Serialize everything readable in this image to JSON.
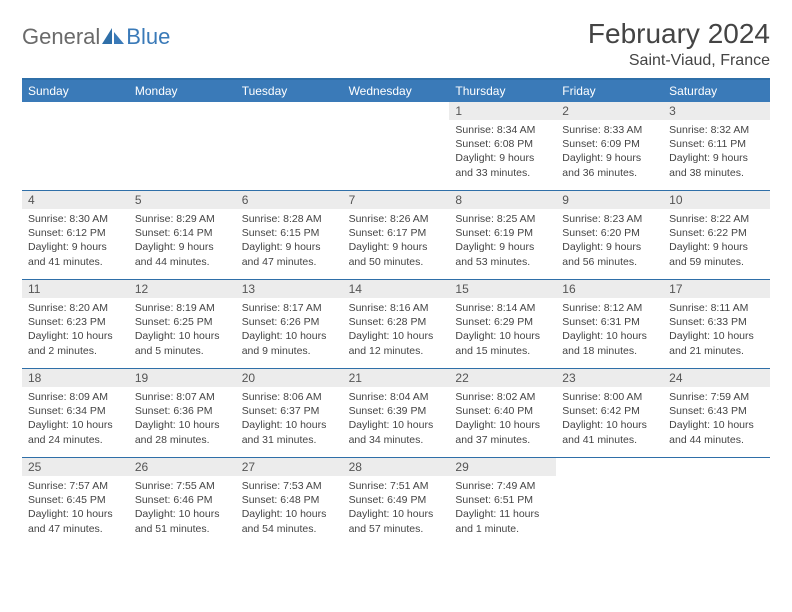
{
  "brand": {
    "part1": "General",
    "part2": "Blue"
  },
  "title": "February 2024",
  "location": "Saint-Viaud, France",
  "colors": {
    "header_bg": "#3a7ab8",
    "header_border": "#2f6fa8",
    "daynum_bg": "#ececec",
    "text": "#444444",
    "logo_gray": "#6a6a6a",
    "logo_blue": "#3a7ab8",
    "background": "#ffffff"
  },
  "typography": {
    "title_fontsize": 28,
    "location_fontsize": 16,
    "dayheader_fontsize": 12,
    "daynum_fontsize": 12,
    "body_fontsize": 10.5
  },
  "day_names": [
    "Sunday",
    "Monday",
    "Tuesday",
    "Wednesday",
    "Thursday",
    "Friday",
    "Saturday"
  ],
  "weeks": [
    [
      {
        "empty": true
      },
      {
        "empty": true
      },
      {
        "empty": true
      },
      {
        "empty": true
      },
      {
        "n": "1",
        "sunrise": "Sunrise: 8:34 AM",
        "sunset": "Sunset: 6:08 PM",
        "day1": "Daylight: 9 hours",
        "day2": "and 33 minutes."
      },
      {
        "n": "2",
        "sunrise": "Sunrise: 8:33 AM",
        "sunset": "Sunset: 6:09 PM",
        "day1": "Daylight: 9 hours",
        "day2": "and 36 minutes."
      },
      {
        "n": "3",
        "sunrise": "Sunrise: 8:32 AM",
        "sunset": "Sunset: 6:11 PM",
        "day1": "Daylight: 9 hours",
        "day2": "and 38 minutes."
      }
    ],
    [
      {
        "n": "4",
        "sunrise": "Sunrise: 8:30 AM",
        "sunset": "Sunset: 6:12 PM",
        "day1": "Daylight: 9 hours",
        "day2": "and 41 minutes."
      },
      {
        "n": "5",
        "sunrise": "Sunrise: 8:29 AM",
        "sunset": "Sunset: 6:14 PM",
        "day1": "Daylight: 9 hours",
        "day2": "and 44 minutes."
      },
      {
        "n": "6",
        "sunrise": "Sunrise: 8:28 AM",
        "sunset": "Sunset: 6:15 PM",
        "day1": "Daylight: 9 hours",
        "day2": "and 47 minutes."
      },
      {
        "n": "7",
        "sunrise": "Sunrise: 8:26 AM",
        "sunset": "Sunset: 6:17 PM",
        "day1": "Daylight: 9 hours",
        "day2": "and 50 minutes."
      },
      {
        "n": "8",
        "sunrise": "Sunrise: 8:25 AM",
        "sunset": "Sunset: 6:19 PM",
        "day1": "Daylight: 9 hours",
        "day2": "and 53 minutes."
      },
      {
        "n": "9",
        "sunrise": "Sunrise: 8:23 AM",
        "sunset": "Sunset: 6:20 PM",
        "day1": "Daylight: 9 hours",
        "day2": "and 56 minutes."
      },
      {
        "n": "10",
        "sunrise": "Sunrise: 8:22 AM",
        "sunset": "Sunset: 6:22 PM",
        "day1": "Daylight: 9 hours",
        "day2": "and 59 minutes."
      }
    ],
    [
      {
        "n": "11",
        "sunrise": "Sunrise: 8:20 AM",
        "sunset": "Sunset: 6:23 PM",
        "day1": "Daylight: 10 hours",
        "day2": "and 2 minutes."
      },
      {
        "n": "12",
        "sunrise": "Sunrise: 8:19 AM",
        "sunset": "Sunset: 6:25 PM",
        "day1": "Daylight: 10 hours",
        "day2": "and 5 minutes."
      },
      {
        "n": "13",
        "sunrise": "Sunrise: 8:17 AM",
        "sunset": "Sunset: 6:26 PM",
        "day1": "Daylight: 10 hours",
        "day2": "and 9 minutes."
      },
      {
        "n": "14",
        "sunrise": "Sunrise: 8:16 AM",
        "sunset": "Sunset: 6:28 PM",
        "day1": "Daylight: 10 hours",
        "day2": "and 12 minutes."
      },
      {
        "n": "15",
        "sunrise": "Sunrise: 8:14 AM",
        "sunset": "Sunset: 6:29 PM",
        "day1": "Daylight: 10 hours",
        "day2": "and 15 minutes."
      },
      {
        "n": "16",
        "sunrise": "Sunrise: 8:12 AM",
        "sunset": "Sunset: 6:31 PM",
        "day1": "Daylight: 10 hours",
        "day2": "and 18 minutes."
      },
      {
        "n": "17",
        "sunrise": "Sunrise: 8:11 AM",
        "sunset": "Sunset: 6:33 PM",
        "day1": "Daylight: 10 hours",
        "day2": "and 21 minutes."
      }
    ],
    [
      {
        "n": "18",
        "sunrise": "Sunrise: 8:09 AM",
        "sunset": "Sunset: 6:34 PM",
        "day1": "Daylight: 10 hours",
        "day2": "and 24 minutes."
      },
      {
        "n": "19",
        "sunrise": "Sunrise: 8:07 AM",
        "sunset": "Sunset: 6:36 PM",
        "day1": "Daylight: 10 hours",
        "day2": "and 28 minutes."
      },
      {
        "n": "20",
        "sunrise": "Sunrise: 8:06 AM",
        "sunset": "Sunset: 6:37 PM",
        "day1": "Daylight: 10 hours",
        "day2": "and 31 minutes."
      },
      {
        "n": "21",
        "sunrise": "Sunrise: 8:04 AM",
        "sunset": "Sunset: 6:39 PM",
        "day1": "Daylight: 10 hours",
        "day2": "and 34 minutes."
      },
      {
        "n": "22",
        "sunrise": "Sunrise: 8:02 AM",
        "sunset": "Sunset: 6:40 PM",
        "day1": "Daylight: 10 hours",
        "day2": "and 37 minutes."
      },
      {
        "n": "23",
        "sunrise": "Sunrise: 8:00 AM",
        "sunset": "Sunset: 6:42 PM",
        "day1": "Daylight: 10 hours",
        "day2": "and 41 minutes."
      },
      {
        "n": "24",
        "sunrise": "Sunrise: 7:59 AM",
        "sunset": "Sunset: 6:43 PM",
        "day1": "Daylight: 10 hours",
        "day2": "and 44 minutes."
      }
    ],
    [
      {
        "n": "25",
        "sunrise": "Sunrise: 7:57 AM",
        "sunset": "Sunset: 6:45 PM",
        "day1": "Daylight: 10 hours",
        "day2": "and 47 minutes."
      },
      {
        "n": "26",
        "sunrise": "Sunrise: 7:55 AM",
        "sunset": "Sunset: 6:46 PM",
        "day1": "Daylight: 10 hours",
        "day2": "and 51 minutes."
      },
      {
        "n": "27",
        "sunrise": "Sunrise: 7:53 AM",
        "sunset": "Sunset: 6:48 PM",
        "day1": "Daylight: 10 hours",
        "day2": "and 54 minutes."
      },
      {
        "n": "28",
        "sunrise": "Sunrise: 7:51 AM",
        "sunset": "Sunset: 6:49 PM",
        "day1": "Daylight: 10 hours",
        "day2": "and 57 minutes."
      },
      {
        "n": "29",
        "sunrise": "Sunrise: 7:49 AM",
        "sunset": "Sunset: 6:51 PM",
        "day1": "Daylight: 11 hours",
        "day2": "and 1 minute."
      },
      {
        "empty": true
      },
      {
        "empty": true
      }
    ]
  ]
}
